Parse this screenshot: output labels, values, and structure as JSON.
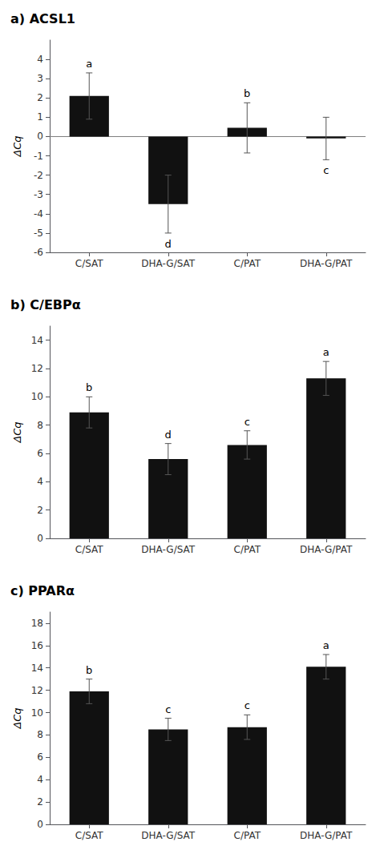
{
  "chart_data": [
    {
      "type": "bar",
      "title": "a) ACSL1",
      "ylabel": "ΔCq",
      "categories": [
        "C/SAT",
        "DHA-G/SAT",
        "C/PAT",
        "DHA-G/PAT"
      ],
      "values": [
        2.1,
        -3.5,
        0.45,
        -0.1
      ],
      "errors": [
        1.2,
        1.5,
        1.3,
        1.1
      ],
      "letters": [
        "a",
        "d",
        "b",
        "c"
      ],
      "color": "#111111",
      "ylim": [
        -6,
        5
      ],
      "yticks": [
        -6,
        -5,
        -4,
        -3,
        -2,
        -1,
        0,
        1,
        2,
        3,
        4
      ],
      "hline": 0,
      "grid": false
    },
    {
      "type": "bar",
      "title": "b) C/EBPα",
      "ylabel": "ΔCq",
      "categories": [
        "C/SAT",
        "DHA-G/SAT",
        "C/PAT",
        "DHA-G/PAT"
      ],
      "values": [
        8.9,
        5.6,
        6.6,
        11.3
      ],
      "errors": [
        1.1,
        1.1,
        1.0,
        1.2
      ],
      "letters": [
        "b",
        "d",
        "c",
        "a"
      ],
      "color": "#111111",
      "ylim": [
        0,
        15
      ],
      "yticks": [
        0,
        2,
        4,
        6,
        8,
        10,
        12,
        14
      ],
      "grid": false
    },
    {
      "type": "bar",
      "title": "c) PPARα",
      "ylabel": "ΔCq",
      "categories": [
        "C/SAT",
        "DHA-G/SAT",
        "C/PAT",
        "DHA-G/PAT"
      ],
      "values": [
        11.9,
        8.5,
        8.7,
        14.1
      ],
      "errors": [
        1.1,
        1.0,
        1.1,
        1.1
      ],
      "letters": [
        "b",
        "c",
        "c",
        "a"
      ],
      "color": "#111111",
      "ylim": [
        0,
        19
      ],
      "yticks": [
        0,
        2,
        4,
        6,
        8,
        10,
        12,
        14,
        16,
        18
      ],
      "grid": false
    }
  ]
}
